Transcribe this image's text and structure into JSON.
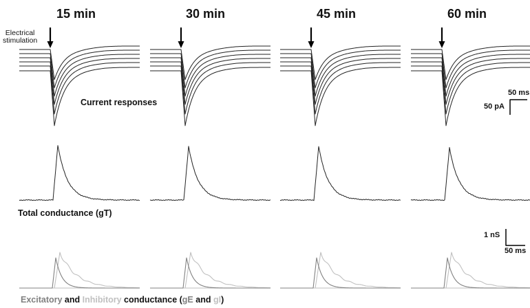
{
  "time_points": [
    "15 min",
    "30 min",
    "45 min",
    "60 min"
  ],
  "stimulus_label_line1": "Electrical",
  "stimulus_label_line2": "stimulation",
  "current_panel_label": "Current responses",
  "current_scalebar": {
    "time_label": "50 ms",
    "amplitude_label": "50 pA"
  },
  "total_panel_label": "Total conductance (gT)",
  "conductance_scalebar": {
    "amplitude_label": "1 nS",
    "time_label": "50 ms"
  },
  "bottom_legend": {
    "excitatory": "Excitatory",
    "and1": " and ",
    "inhibitory": "Inhibitory",
    "conductance": " conductance (",
    "gE": "gE",
    "and2": " and ",
    "gI": "gI",
    "close": ")"
  },
  "colors": {
    "trace": "#222222",
    "excitatory": "#808080",
    "inhibitory": "#c0c0c0",
    "baseline": "#bdbdbd"
  }
}
